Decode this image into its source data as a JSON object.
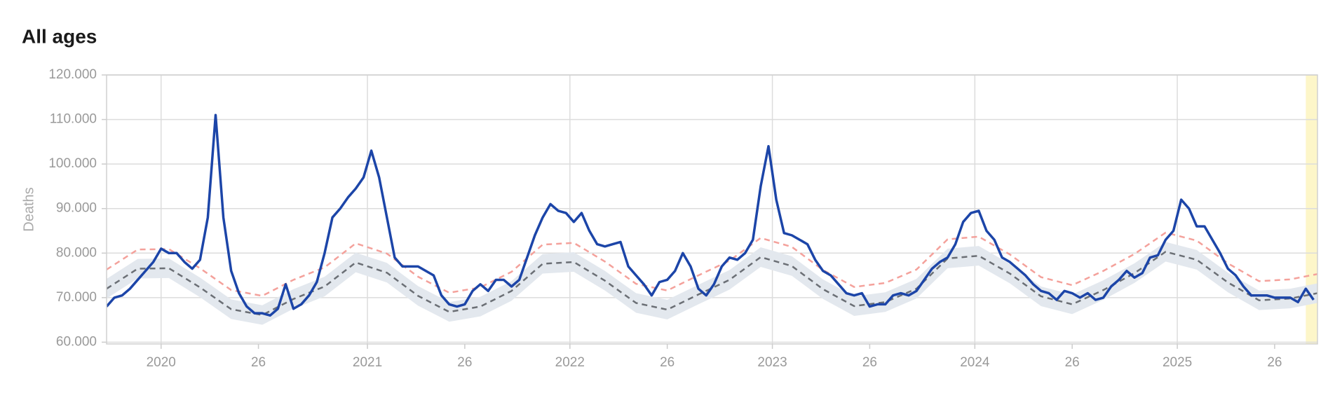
{
  "chart_data": {
    "type": "line",
    "title": "All ages",
    "y_label": "Deaths",
    "xlim": [
      0,
      311
    ],
    "xticks": [
      {
        "value": 14,
        "label": "2020"
      },
      {
        "value": 39,
        "label": "26"
      },
      {
        "value": 67,
        "label": "2021"
      },
      {
        "value": 92,
        "label": "26"
      },
      {
        "value": 119,
        "label": "2022"
      },
      {
        "value": 144,
        "label": "26"
      },
      {
        "value": 171,
        "label": "2023"
      },
      {
        "value": 196,
        "label": "26"
      },
      {
        "value": 223,
        "label": "2024"
      },
      {
        "value": 248,
        "label": "26"
      },
      {
        "value": 275,
        "label": "2025"
      },
      {
        "value": 300,
        "label": "26"
      }
    ],
    "ylim": [
      59600,
      120000
    ],
    "yticks": [
      {
        "value": 60000,
        "label": "60.000"
      },
      {
        "value": 70000,
        "label": "70.000"
      },
      {
        "value": 80000,
        "label": "80.000"
      },
      {
        "value": 90000,
        "label": "90.000"
      },
      {
        "value": 100000,
        "label": "100.000"
      },
      {
        "value": 110000,
        "label": "110.000"
      },
      {
        "value": 120000,
        "label": "120.000"
      }
    ],
    "grid": true,
    "highlight_x": [
      308,
      311
    ],
    "highlight_color": "#fdf6c9",
    "band": {
      "color": "#e3e8ee",
      "x": [
        0,
        8,
        16,
        24,
        32,
        40,
        48,
        56,
        64,
        72,
        80,
        88,
        96,
        104,
        112,
        120,
        128,
        136,
        144,
        152,
        160,
        168,
        176,
        184,
        192,
        200,
        208,
        216,
        224,
        232,
        240,
        248,
        256,
        264,
        272,
        280,
        288,
        296,
        304,
        311
      ],
      "lower": [
        69800,
        74300,
        74400,
        70100,
        65200,
        63900,
        67500,
        70300,
        75700,
        73400,
        68200,
        64600,
        65800,
        69300,
        75400,
        75800,
        71600,
        66600,
        65100,
        68500,
        71800,
        76900,
        74900,
        69700,
        65900,
        66800,
        69800,
        76600,
        77200,
        73200,
        68100,
        66300,
        69500,
        73300,
        78100,
        76300,
        71200,
        67200,
        67600,
        68800
      ],
      "upper": [
        74200,
        78700,
        78800,
        74500,
        69600,
        68300,
        71900,
        74700,
        80100,
        77800,
        72600,
        69000,
        70200,
        73700,
        79800,
        80200,
        76000,
        71000,
        69500,
        72900,
        76200,
        81300,
        79300,
        74100,
        70300,
        71200,
        74200,
        81000,
        81600,
        77600,
        72500,
        70700,
        73900,
        77700,
        82500,
        80700,
        75600,
        71600,
        72000,
        73200
      ]
    },
    "series": [
      {
        "color": "#f4a19b",
        "dashed": true,
        "x": [
          0,
          8,
          16,
          24,
          32,
          40,
          48,
          56,
          64,
          72,
          80,
          88,
          96,
          104,
          112,
          120,
          128,
          136,
          144,
          152,
          160,
          168,
          176,
          184,
          192,
          200,
          208,
          216,
          224,
          232,
          240,
          248,
          256,
          264,
          272,
          280,
          288,
          296,
          304,
          311
        ],
        "values": [
          76300,
          80800,
          80900,
          76600,
          71700,
          70400,
          74000,
          76800,
          82200,
          79900,
          74700,
          71100,
          72300,
          75800,
          81900,
          82300,
          78100,
          73100,
          71600,
          75000,
          78300,
          83400,
          81400,
          76200,
          72400,
          73300,
          76300,
          83100,
          83700,
          79700,
          74600,
          72800,
          76000,
          79800,
          84600,
          82800,
          77700,
          73700,
          74100,
          75300
        ]
      },
      {
        "color": "#6b6f75",
        "dashed": true,
        "x": [
          0,
          8,
          16,
          24,
          32,
          40,
          48,
          56,
          64,
          72,
          80,
          88,
          96,
          104,
          112,
          120,
          128,
          136,
          144,
          152,
          160,
          168,
          176,
          184,
          192,
          200,
          208,
          216,
          224,
          232,
          240,
          248,
          256,
          264,
          272,
          280,
          288,
          296,
          304,
          311
        ],
        "values": [
          72000,
          76500,
          76600,
          72300,
          67400,
          66100,
          69700,
          72500,
          77900,
          75600,
          70400,
          66800,
          68000,
          71500,
          77600,
          78000,
          73800,
          68800,
          67300,
          70700,
          74000,
          79100,
          77100,
          71900,
          68100,
          69000,
          72000,
          78800,
          79400,
          75400,
          70300,
          68500,
          71700,
          75500,
          80300,
          78500,
          73400,
          69400,
          69800,
          71000
        ]
      },
      {
        "color": "#1c45a8",
        "dashed": false,
        "x": [
          0,
          2,
          4,
          6,
          8,
          10,
          12,
          14,
          16,
          18,
          20,
          22,
          24,
          26,
          28,
          30,
          32,
          34,
          36,
          38,
          40,
          42,
          44,
          46,
          48,
          50,
          52,
          54,
          56,
          58,
          60,
          62,
          64,
          66,
          68,
          70,
          72,
          74,
          76,
          78,
          80,
          82,
          84,
          86,
          88,
          90,
          92,
          94,
          96,
          98,
          100,
          102,
          104,
          106,
          108,
          110,
          112,
          114,
          116,
          118,
          120,
          122,
          124,
          126,
          128,
          130,
          132,
          134,
          136,
          138,
          140,
          142,
          144,
          146,
          148,
          150,
          152,
          154,
          156,
          158,
          160,
          162,
          164,
          166,
          168,
          170,
          172,
          174,
          176,
          178,
          180,
          182,
          184,
          186,
          188,
          190,
          192,
          194,
          196,
          198,
          200,
          202,
          204,
          206,
          208,
          210,
          212,
          214,
          216,
          218,
          220,
          222,
          224,
          226,
          228,
          230,
          232,
          234,
          236,
          238,
          240,
          242,
          244,
          246,
          248,
          250,
          252,
          254,
          256,
          258,
          260,
          262,
          264,
          266,
          268,
          270,
          272,
          274,
          276,
          278,
          280,
          282,
          284,
          286,
          288,
          290,
          292,
          294,
          296,
          298,
          300,
          302,
          304,
          306,
          308,
          310
        ],
        "values": [
          68000,
          70000,
          70500,
          72000,
          74000,
          76000,
          78000,
          81000,
          80000,
          80000,
          78000,
          76500,
          78500,
          88000,
          111000,
          88000,
          76000,
          71000,
          68000,
          66500,
          66500,
          66000,
          67500,
          73000,
          67500,
          68500,
          70500,
          73500,
          80000,
          88000,
          90000,
          92500,
          94500,
          97000,
          103000,
          97000,
          88000,
          79000,
          77000,
          77000,
          77000,
          76000,
          75000,
          70500,
          68500,
          68000,
          68500,
          71500,
          73000,
          71500,
          74000,
          74000,
          72500,
          74000,
          79000,
          84000,
          88000,
          91000,
          89500,
          89000,
          87000,
          89000,
          85000,
          82000,
          81500,
          82000,
          82500,
          77000,
          75000,
          73000,
          70500,
          73500,
          74000,
          76000,
          80000,
          77000,
          72000,
          70500,
          73000,
          77000,
          79000,
          78500,
          80000,
          83000,
          95000,
          104000,
          92000,
          84500,
          84000,
          83000,
          82000,
          78500,
          76000,
          75000,
          73000,
          71000,
          70500,
          71000,
          68000,
          68500,
          68500,
          70500,
          71000,
          70500,
          71500,
          74000,
          76500,
          78000,
          79000,
          82000,
          87000,
          89000,
          89500,
          85000,
          83000,
          79000,
          78000,
          76500,
          75000,
          73000,
          71500,
          71000,
          69500,
          71500,
          71000,
          70000,
          71000,
          69500,
          70000,
          72500,
          74000,
          76000,
          74500,
          75500,
          79000,
          79500,
          83000,
          85000,
          92000,
          90000,
          86000,
          86000,
          83000,
          80000,
          76500,
          75000,
          72500,
          70500,
          70500,
          70500,
          70000,
          70000,
          70000,
          69000,
          72000,
          69500
        ]
      }
    ]
  }
}
